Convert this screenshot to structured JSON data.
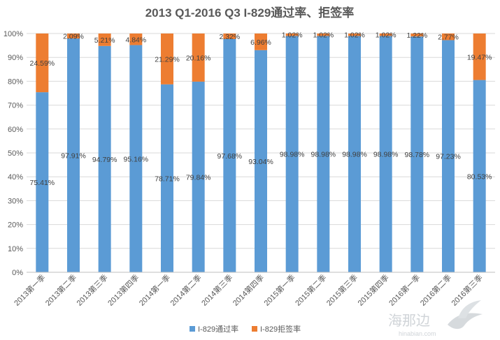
{
  "chart_data": {
    "type": "bar",
    "stacked": true,
    "title": "2013 Q1-2016 Q3 I-829通过率、拒签率",
    "xlabel": "",
    "ylabel": "",
    "ylim": [
      0,
      100
    ],
    "y_ticks": [
      "0%",
      "10%",
      "20%",
      "30%",
      "40%",
      "50%",
      "60%",
      "70%",
      "80%",
      "90%",
      "100%"
    ],
    "categories": [
      "2013第一季",
      "2013第二季",
      "2013第三季",
      "2013第四季",
      "2014第一季",
      "2014第二季",
      "2014第三季",
      "2014第四季",
      "2015第一季",
      "2015第二季",
      "2015第三季",
      "2015第四季",
      "2016第一季",
      "2016第二季",
      "2016第三季"
    ],
    "series": [
      {
        "name": "I-829通过率",
        "color": "#5b9bd5",
        "values": [
          75.41,
          97.91,
          94.79,
          95.16,
          78.71,
          79.84,
          97.68,
          93.04,
          98.98,
          98.98,
          98.98,
          98.98,
          98.78,
          97.23,
          80.53
        ],
        "labels": [
          "75.41%",
          "97.91%",
          "94.79%",
          "95.16%",
          "78.71%",
          "79.84%",
          "97.68%",
          "93.04%",
          "98.98%",
          "98.98%",
          "98.98%",
          "98.98%",
          "98.78%",
          "97.23%",
          "80.53%"
        ]
      },
      {
        "name": "I-829拒签率",
        "color": "#ed7d31",
        "values": [
          24.59,
          2.09,
          5.21,
          4.84,
          21.29,
          20.16,
          2.32,
          6.96,
          1.02,
          1.02,
          1.02,
          1.02,
          1.22,
          2.77,
          19.47
        ],
        "labels": [
          "24.59%",
          "2.09%",
          "5.21%",
          "4.84%",
          "21.29%",
          "20.16%",
          "2.32%",
          "6.96%",
          "1.02%",
          "1.02%",
          "1.02%",
          "1.02%",
          "1.22%",
          "2.77%",
          "19.47%"
        ]
      }
    ],
    "grid": true,
    "legend": "bottom"
  },
  "watermark": {
    "text_cn": "海那边",
    "text_url": "hinabian.com"
  }
}
